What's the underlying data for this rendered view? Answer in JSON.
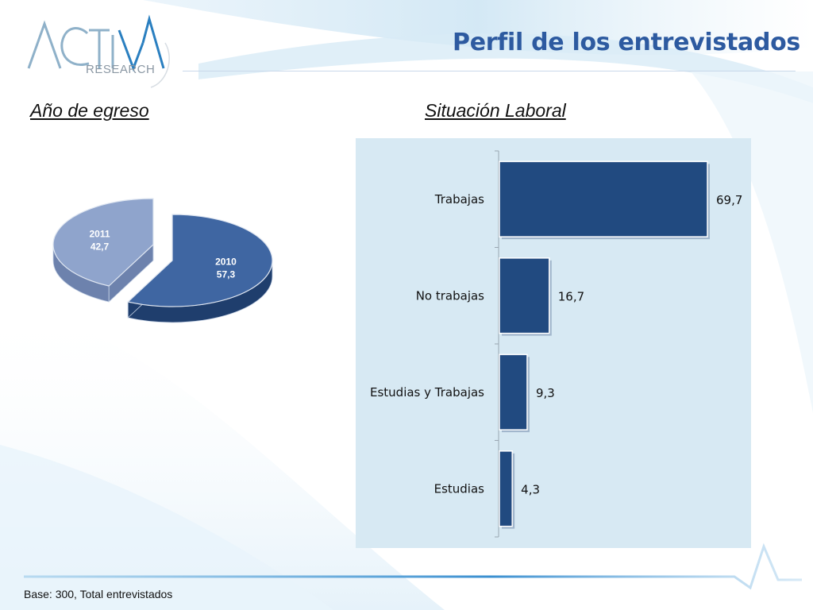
{
  "page": {
    "title": "Perfil de los entrevistados",
    "base_note": "Base: 300, Total entrevistados",
    "logo": {
      "name": "ACTIVA",
      "subtitle": "RESEARCH"
    }
  },
  "colors": {
    "title": "#2d5aa0",
    "bar": "#214a80",
    "panel": "#d7e9f3",
    "pie_2010": "#3f66a2",
    "pie_2011": "#8fa4cc"
  },
  "chart_data": [
    {
      "type": "pie",
      "title": "Año de egreso",
      "categories": [
        "2011",
        "2010"
      ],
      "values": [
        42.7,
        57.3
      ],
      "value_labels": [
        "42,7",
        "57,3"
      ],
      "exploded": true,
      "style": "3d"
    },
    {
      "type": "bar",
      "orientation": "horizontal",
      "title": "Situación Laboral",
      "categories": [
        "Trabajas",
        "No trabajas",
        "Estudias y Trabajas",
        "Estudias"
      ],
      "values": [
        69.7,
        16.7,
        9.3,
        4.3
      ],
      "value_labels": [
        "69,7",
        "16,7",
        "9,3",
        "4,3"
      ],
      "xlim": [
        0,
        80
      ],
      "grid": false,
      "legend": "none"
    }
  ]
}
